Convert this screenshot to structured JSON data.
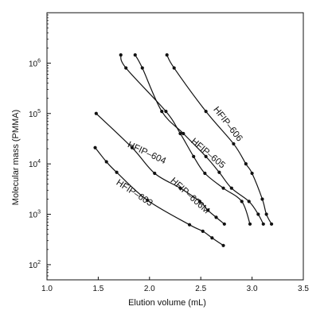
{
  "chart_data": {
    "type": "line",
    "title": "",
    "xlabel": "Elution volume (mL)",
    "ylabel": "Molecular mass (PMMA)",
    "xlim": [
      1.0,
      3.5
    ],
    "ylim": [
      50,
      10000000
    ],
    "y_scale": "log",
    "grid": false,
    "legend": "none",
    "x_ticks": [
      {
        "value": 1.0,
        "label": "1.0"
      },
      {
        "value": 1.5,
        "label": "1.5"
      },
      {
        "value": 2.0,
        "label": "2.0"
      },
      {
        "value": 2.5,
        "label": "2.5"
      },
      {
        "value": 3.0,
        "label": "3.0"
      },
      {
        "value": 3.5,
        "label": "3.5"
      }
    ],
    "y_ticks": [
      {
        "value": 100,
        "base": "10",
        "exp": "2"
      },
      {
        "value": 1000,
        "base": "10",
        "exp": "3"
      },
      {
        "value": 10000,
        "base": "10",
        "exp": "4"
      },
      {
        "value": 100000,
        "base": "10",
        "exp": "5"
      },
      {
        "value": 1000000,
        "base": "10",
        "exp": "6"
      }
    ],
    "series": [
      {
        "name": "HFIP–606",
        "label_at": {
          "x": 2.62,
          "y": 120000
        },
        "label_angle": 52,
        "x": [
          2.17,
          2.24,
          2.55,
          2.82,
          2.94,
          3.0,
          3.1,
          3.14,
          3.19
        ],
        "y": [
          1450000,
          800000,
          110000,
          25000,
          10000,
          6500,
          2000,
          1000,
          640
        ]
      },
      {
        "name": "HFIP–605",
        "label_at": {
          "x": 2.4,
          "y": 27000
        },
        "label_angle": 40,
        "x": [
          1.86,
          1.93,
          2.12,
          2.33,
          2.55,
          2.68,
          2.8,
          2.97,
          3.06,
          3.11
        ],
        "y": [
          1450000,
          800000,
          110000,
          40000,
          14000,
          6800,
          3300,
          1800,
          1000,
          640
        ]
      },
      {
        "name": "HFIP–606M",
        "label_at": {
          "x": 2.2,
          "y": 4500
        },
        "label_angle": 42,
        "x": [
          1.72,
          1.77,
          2.16,
          2.3,
          2.43,
          2.54,
          2.72,
          2.9,
          2.98
        ],
        "y": [
          1450000,
          800000,
          110000,
          40000,
          14000,
          6500,
          3300,
          1800,
          640
        ]
      },
      {
        "name": "HFIP–604",
        "label_at": {
          "x": 1.78,
          "y": 22000
        },
        "label_angle": 25,
        "x": [
          1.48,
          1.83,
          2.05,
          2.3,
          2.49,
          2.57,
          2.65,
          2.73
        ],
        "y": [
          100000,
          21000,
          6500,
          3300,
          1800,
          1200,
          870,
          640
        ]
      },
      {
        "name": "HFIP–603",
        "label_at": {
          "x": 1.67,
          "y": 4000
        },
        "label_angle": 33,
        "x": [
          1.47,
          1.58,
          1.68,
          1.98,
          2.39,
          2.52,
          2.61,
          2.72
        ],
        "y": [
          21000,
          11000,
          6800,
          1900,
          620,
          460,
          340,
          240
        ]
      }
    ]
  }
}
